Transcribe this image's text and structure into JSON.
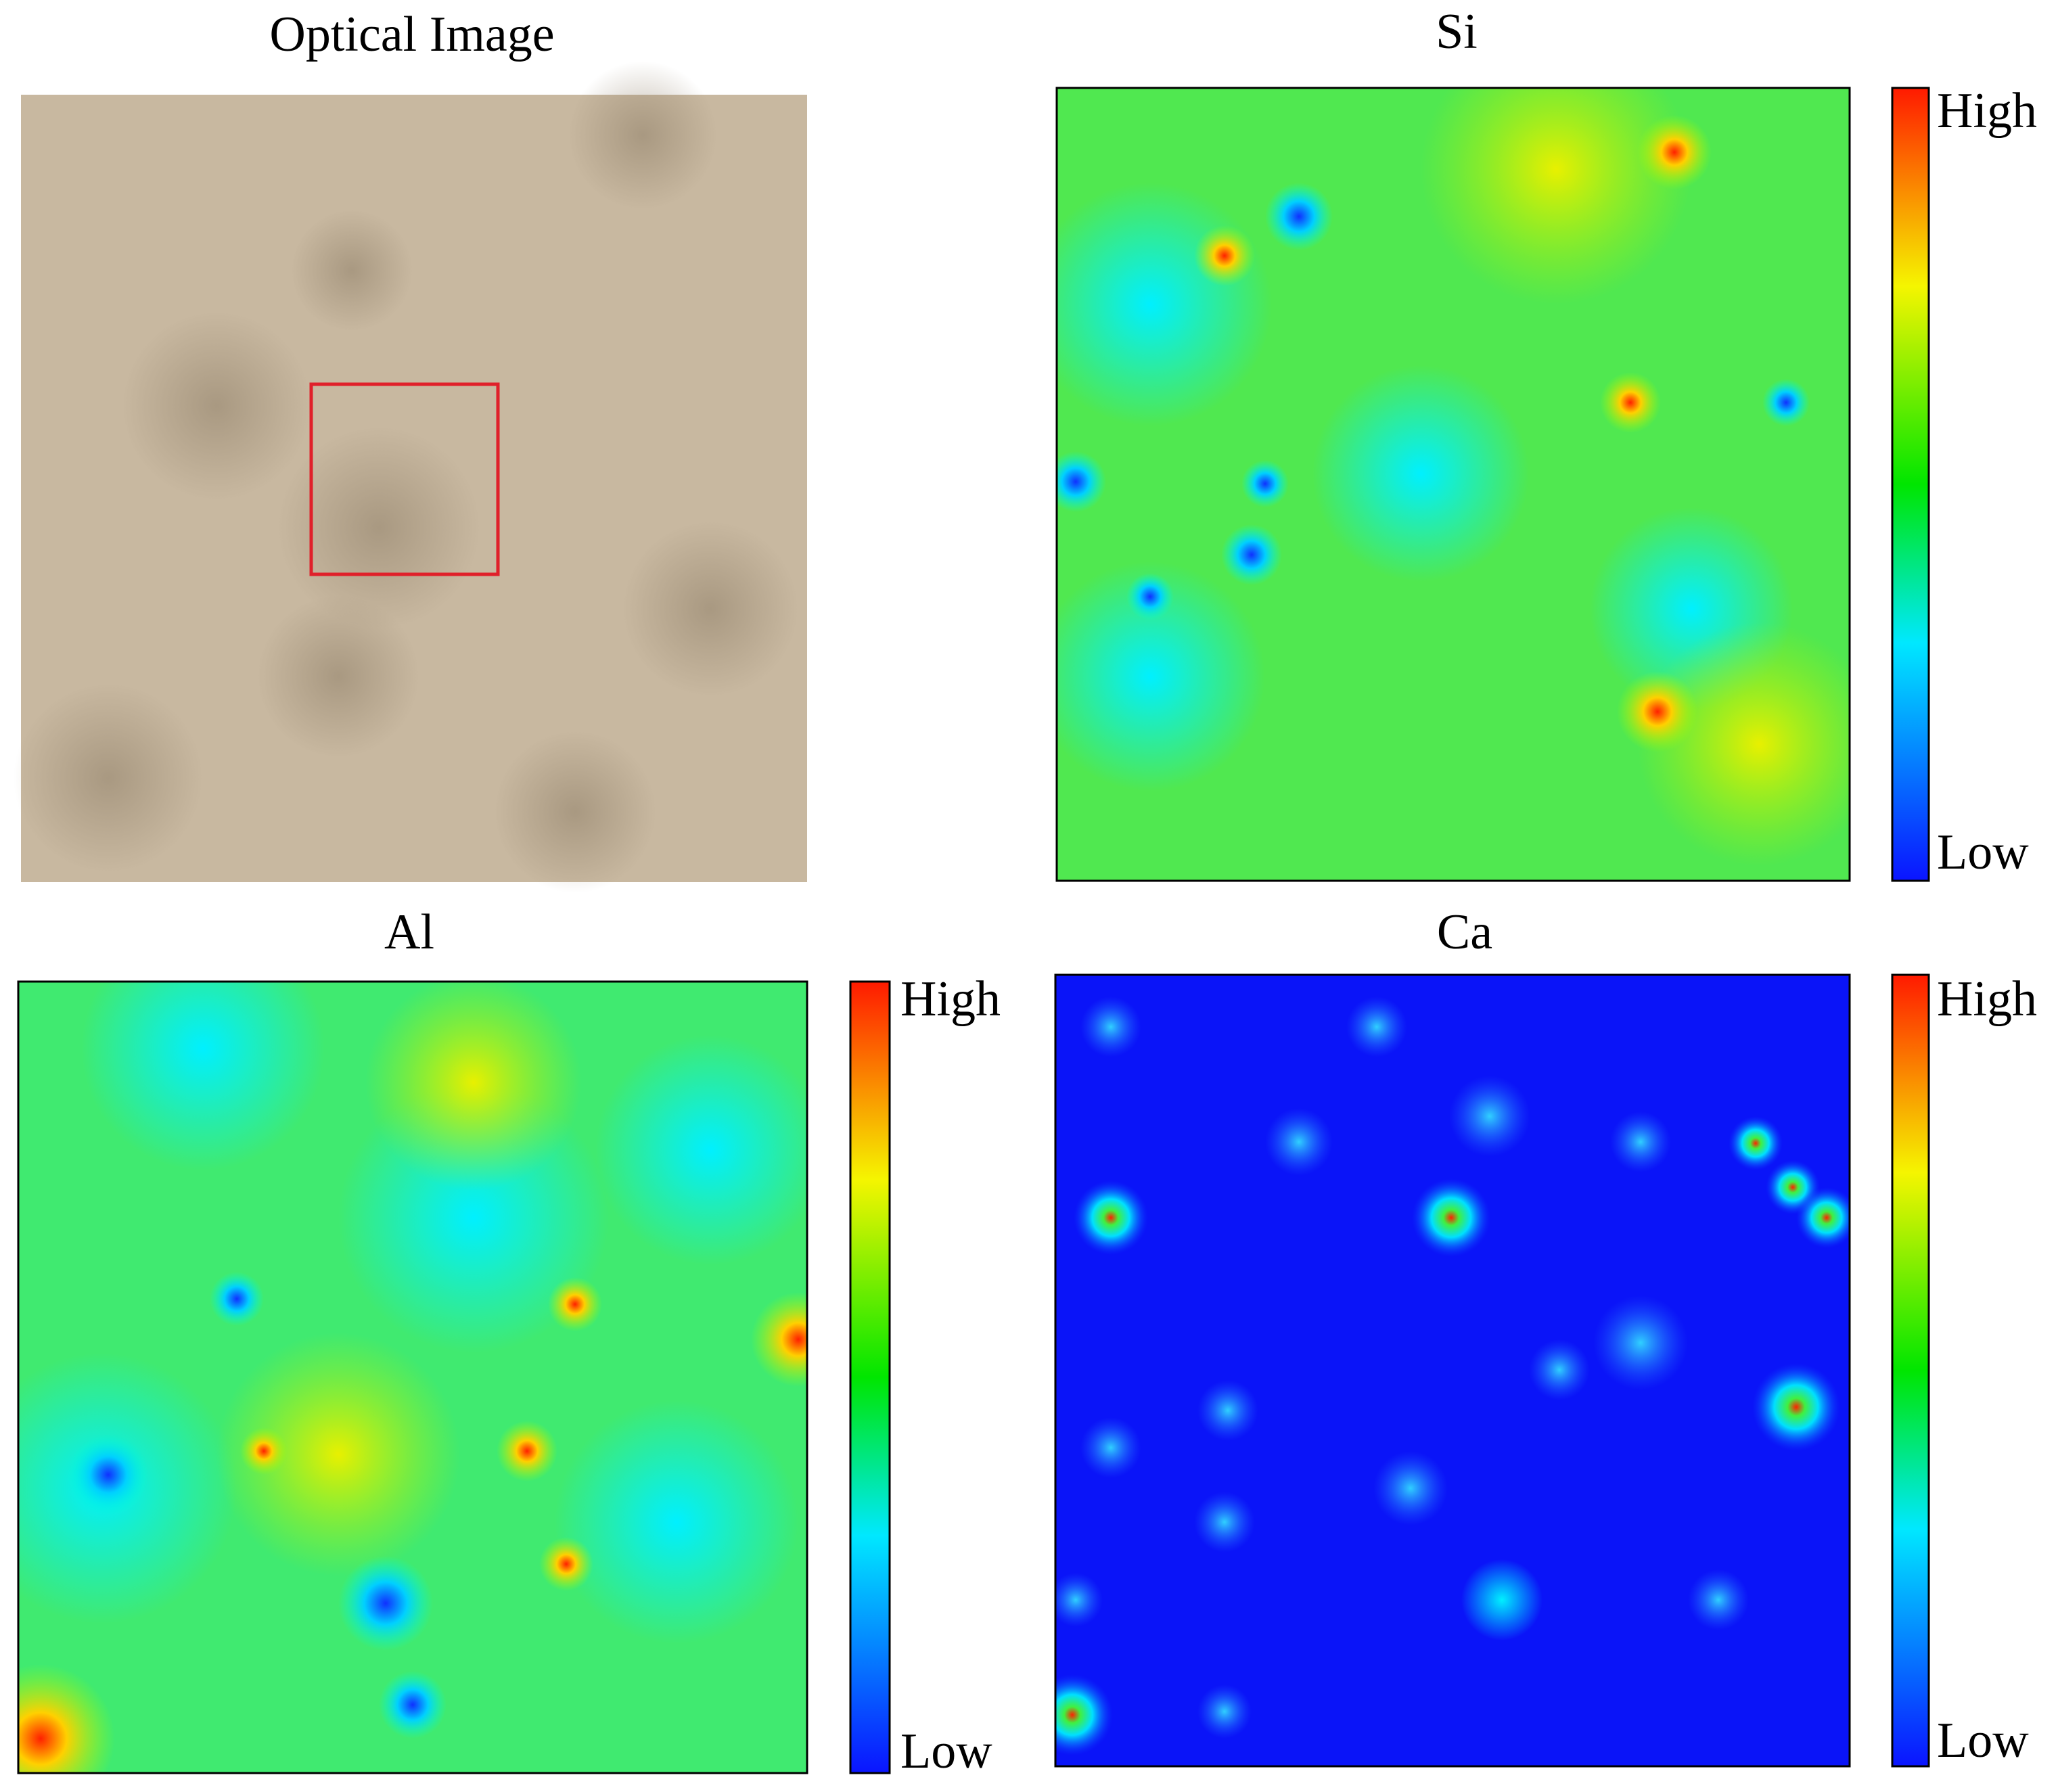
{
  "panels": [
    {
      "title": "Optical Image"
    },
    {
      "title": "Si",
      "colorbar": {
        "high": "High",
        "low": "Low"
      }
    },
    {
      "title": "Al",
      "colorbar": {
        "high": "High",
        "low": "Low"
      }
    },
    {
      "title": "Ca",
      "colorbar": {
        "high": "High",
        "low": "Low"
      }
    }
  ]
}
